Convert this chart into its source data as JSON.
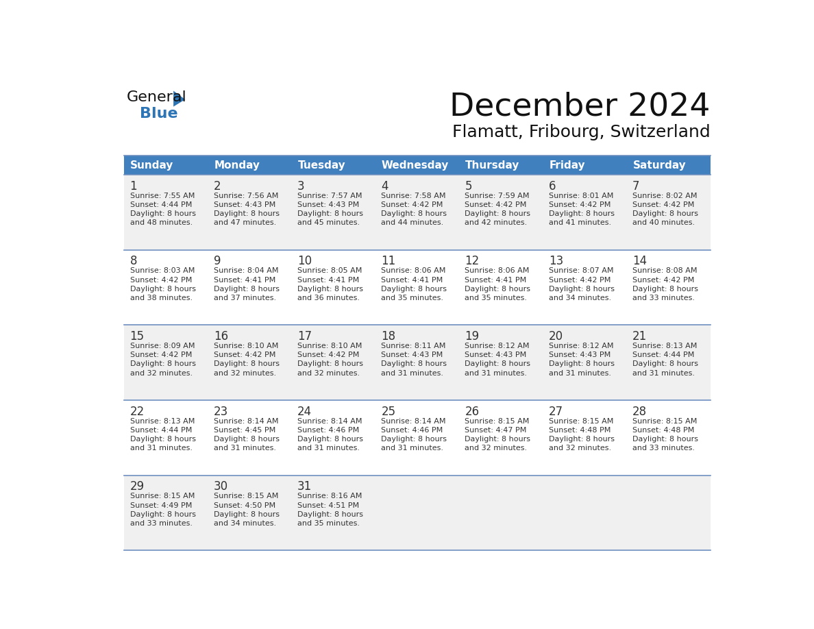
{
  "title": "December 2024",
  "subtitle": "Flamatt, Fribourg, Switzerland",
  "header_bg": "#4080BF",
  "header_text": "#FFFFFF",
  "row_bg_colors": [
    "#F0F0F0",
    "#FFFFFF",
    "#F0F0F0",
    "#FFFFFF",
    "#F0F0F0"
  ],
  "day_headers": [
    "Sunday",
    "Monday",
    "Tuesday",
    "Wednesday",
    "Thursday",
    "Friday",
    "Saturday"
  ],
  "days": [
    {
      "day": 1,
      "col": 0,
      "row": 0,
      "sunrise": "7:55 AM",
      "sunset": "4:44 PM",
      "daylight_h": "8 hours",
      "daylight_m": "and 48 minutes."
    },
    {
      "day": 2,
      "col": 1,
      "row": 0,
      "sunrise": "7:56 AM",
      "sunset": "4:43 PM",
      "daylight_h": "8 hours",
      "daylight_m": "and 47 minutes."
    },
    {
      "day": 3,
      "col": 2,
      "row": 0,
      "sunrise": "7:57 AM",
      "sunset": "4:43 PM",
      "daylight_h": "8 hours",
      "daylight_m": "and 45 minutes."
    },
    {
      "day": 4,
      "col": 3,
      "row": 0,
      "sunrise": "7:58 AM",
      "sunset": "4:42 PM",
      "daylight_h": "8 hours",
      "daylight_m": "and 44 minutes."
    },
    {
      "day": 5,
      "col": 4,
      "row": 0,
      "sunrise": "7:59 AM",
      "sunset": "4:42 PM",
      "daylight_h": "8 hours",
      "daylight_m": "and 42 minutes."
    },
    {
      "day": 6,
      "col": 5,
      "row": 0,
      "sunrise": "8:01 AM",
      "sunset": "4:42 PM",
      "daylight_h": "8 hours",
      "daylight_m": "and 41 minutes."
    },
    {
      "day": 7,
      "col": 6,
      "row": 0,
      "sunrise": "8:02 AM",
      "sunset": "4:42 PM",
      "daylight_h": "8 hours",
      "daylight_m": "and 40 minutes."
    },
    {
      "day": 8,
      "col": 0,
      "row": 1,
      "sunrise": "8:03 AM",
      "sunset": "4:42 PM",
      "daylight_h": "8 hours",
      "daylight_m": "and 38 minutes."
    },
    {
      "day": 9,
      "col": 1,
      "row": 1,
      "sunrise": "8:04 AM",
      "sunset": "4:41 PM",
      "daylight_h": "8 hours",
      "daylight_m": "and 37 minutes."
    },
    {
      "day": 10,
      "col": 2,
      "row": 1,
      "sunrise": "8:05 AM",
      "sunset": "4:41 PM",
      "daylight_h": "8 hours",
      "daylight_m": "and 36 minutes."
    },
    {
      "day": 11,
      "col": 3,
      "row": 1,
      "sunrise": "8:06 AM",
      "sunset": "4:41 PM",
      "daylight_h": "8 hours",
      "daylight_m": "and 35 minutes."
    },
    {
      "day": 12,
      "col": 4,
      "row": 1,
      "sunrise": "8:06 AM",
      "sunset": "4:41 PM",
      "daylight_h": "8 hours",
      "daylight_m": "and 35 minutes."
    },
    {
      "day": 13,
      "col": 5,
      "row": 1,
      "sunrise": "8:07 AM",
      "sunset": "4:42 PM",
      "daylight_h": "8 hours",
      "daylight_m": "and 34 minutes."
    },
    {
      "day": 14,
      "col": 6,
      "row": 1,
      "sunrise": "8:08 AM",
      "sunset": "4:42 PM",
      "daylight_h": "8 hours",
      "daylight_m": "and 33 minutes."
    },
    {
      "day": 15,
      "col": 0,
      "row": 2,
      "sunrise": "8:09 AM",
      "sunset": "4:42 PM",
      "daylight_h": "8 hours",
      "daylight_m": "and 32 minutes."
    },
    {
      "day": 16,
      "col": 1,
      "row": 2,
      "sunrise": "8:10 AM",
      "sunset": "4:42 PM",
      "daylight_h": "8 hours",
      "daylight_m": "and 32 minutes."
    },
    {
      "day": 17,
      "col": 2,
      "row": 2,
      "sunrise": "8:10 AM",
      "sunset": "4:42 PM",
      "daylight_h": "8 hours",
      "daylight_m": "and 32 minutes."
    },
    {
      "day": 18,
      "col": 3,
      "row": 2,
      "sunrise": "8:11 AM",
      "sunset": "4:43 PM",
      "daylight_h": "8 hours",
      "daylight_m": "and 31 minutes."
    },
    {
      "day": 19,
      "col": 4,
      "row": 2,
      "sunrise": "8:12 AM",
      "sunset": "4:43 PM",
      "daylight_h": "8 hours",
      "daylight_m": "and 31 minutes."
    },
    {
      "day": 20,
      "col": 5,
      "row": 2,
      "sunrise": "8:12 AM",
      "sunset": "4:43 PM",
      "daylight_h": "8 hours",
      "daylight_m": "and 31 minutes."
    },
    {
      "day": 21,
      "col": 6,
      "row": 2,
      "sunrise": "8:13 AM",
      "sunset": "4:44 PM",
      "daylight_h": "8 hours",
      "daylight_m": "and 31 minutes."
    },
    {
      "day": 22,
      "col": 0,
      "row": 3,
      "sunrise": "8:13 AM",
      "sunset": "4:44 PM",
      "daylight_h": "8 hours",
      "daylight_m": "and 31 minutes."
    },
    {
      "day": 23,
      "col": 1,
      "row": 3,
      "sunrise": "8:14 AM",
      "sunset": "4:45 PM",
      "daylight_h": "8 hours",
      "daylight_m": "and 31 minutes."
    },
    {
      "day": 24,
      "col": 2,
      "row": 3,
      "sunrise": "8:14 AM",
      "sunset": "4:46 PM",
      "daylight_h": "8 hours",
      "daylight_m": "and 31 minutes."
    },
    {
      "day": 25,
      "col": 3,
      "row": 3,
      "sunrise": "8:14 AM",
      "sunset": "4:46 PM",
      "daylight_h": "8 hours",
      "daylight_m": "and 31 minutes."
    },
    {
      "day": 26,
      "col": 4,
      "row": 3,
      "sunrise": "8:15 AM",
      "sunset": "4:47 PM",
      "daylight_h": "8 hours",
      "daylight_m": "and 32 minutes."
    },
    {
      "day": 27,
      "col": 5,
      "row": 3,
      "sunrise": "8:15 AM",
      "sunset": "4:48 PM",
      "daylight_h": "8 hours",
      "daylight_m": "and 32 minutes."
    },
    {
      "day": 28,
      "col": 6,
      "row": 3,
      "sunrise": "8:15 AM",
      "sunset": "4:48 PM",
      "daylight_h": "8 hours",
      "daylight_m": "and 33 minutes."
    },
    {
      "day": 29,
      "col": 0,
      "row": 4,
      "sunrise": "8:15 AM",
      "sunset": "4:49 PM",
      "daylight_h": "8 hours",
      "daylight_m": "and 33 minutes."
    },
    {
      "day": 30,
      "col": 1,
      "row": 4,
      "sunrise": "8:15 AM",
      "sunset": "4:50 PM",
      "daylight_h": "8 hours",
      "daylight_m": "and 34 minutes."
    },
    {
      "day": 31,
      "col": 2,
      "row": 4,
      "sunrise": "8:16 AM",
      "sunset": "4:51 PM",
      "daylight_h": "8 hours",
      "daylight_m": "and 35 minutes."
    }
  ],
  "logo_general_color": "#111111",
  "logo_blue_color": "#2E75B6",
  "logo_triangle_color": "#2E75B6",
  "text_color": "#333333",
  "line_color": "#7090C0"
}
